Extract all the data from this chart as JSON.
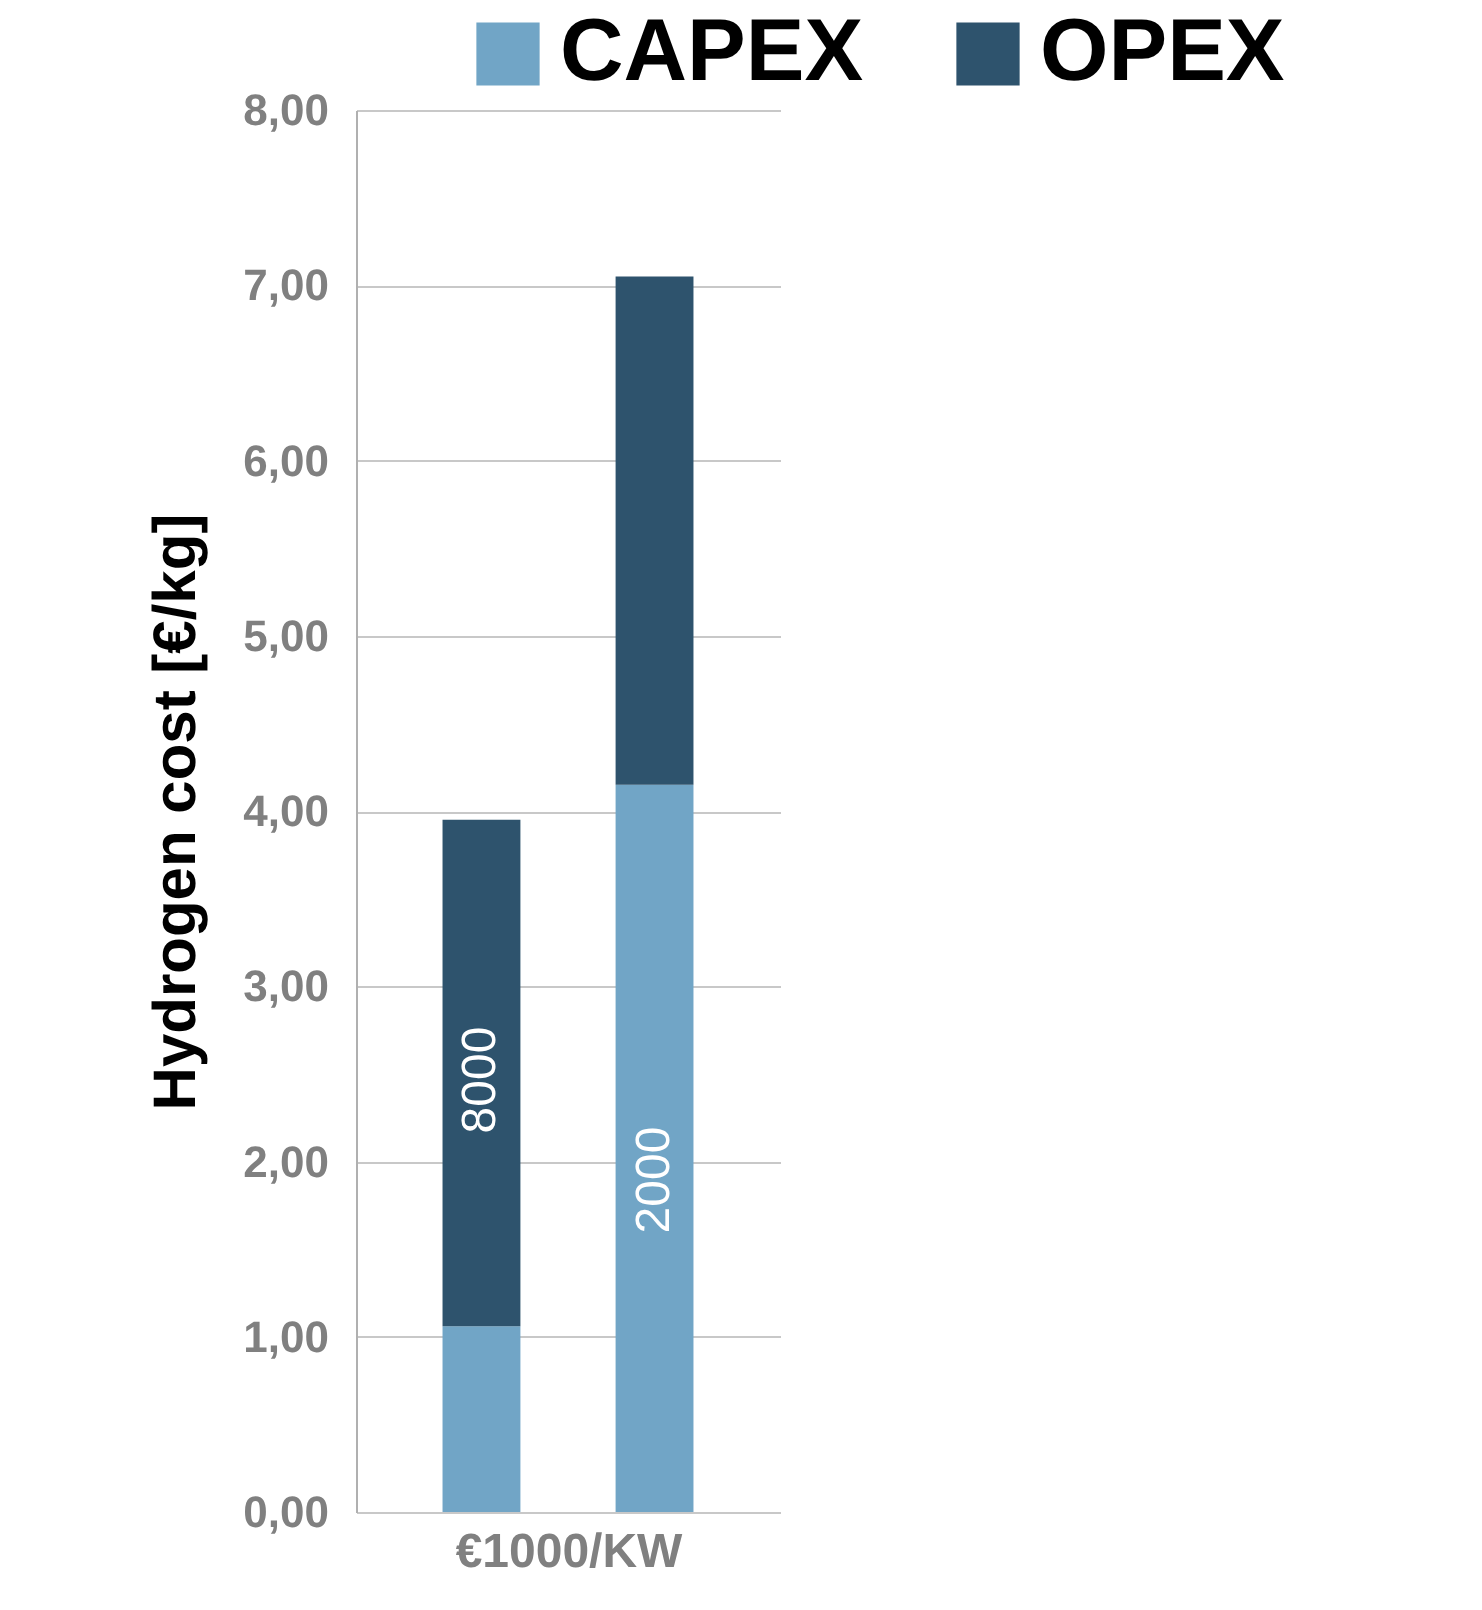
{
  "chart_data": {
    "type": "bar",
    "stacked": true,
    "categories": [
      null,
      null
    ],
    "series": [
      {
        "name": "CAPEX",
        "color": "#71a5c6",
        "values": [
          1.06,
          4.15
        ]
      },
      {
        "name": "OPEX",
        "color": "#2e536d",
        "values": [
          2.89,
          2.9
        ]
      }
    ],
    "xlabel": "€1000/KW",
    "ylabel": "Hydrogen cost [€/kg]",
    "ylim": [
      0,
      8
    ],
    "yticks": [
      {
        "value": 0,
        "label": "0,00"
      },
      {
        "value": 1,
        "label": "1,00"
      },
      {
        "value": 2,
        "label": "2,00"
      },
      {
        "value": 3,
        "label": "3,00"
      },
      {
        "value": 4,
        "label": "4,00"
      },
      {
        "value": 5,
        "label": "5,00"
      },
      {
        "value": 6,
        "label": "6,00"
      },
      {
        "value": 7,
        "label": "7,00"
      },
      {
        "value": 8,
        "label": "8,00"
      }
    ],
    "annotations": [
      "8000",
      "2000"
    ],
    "grid": "y",
    "legend": "top right"
  }
}
